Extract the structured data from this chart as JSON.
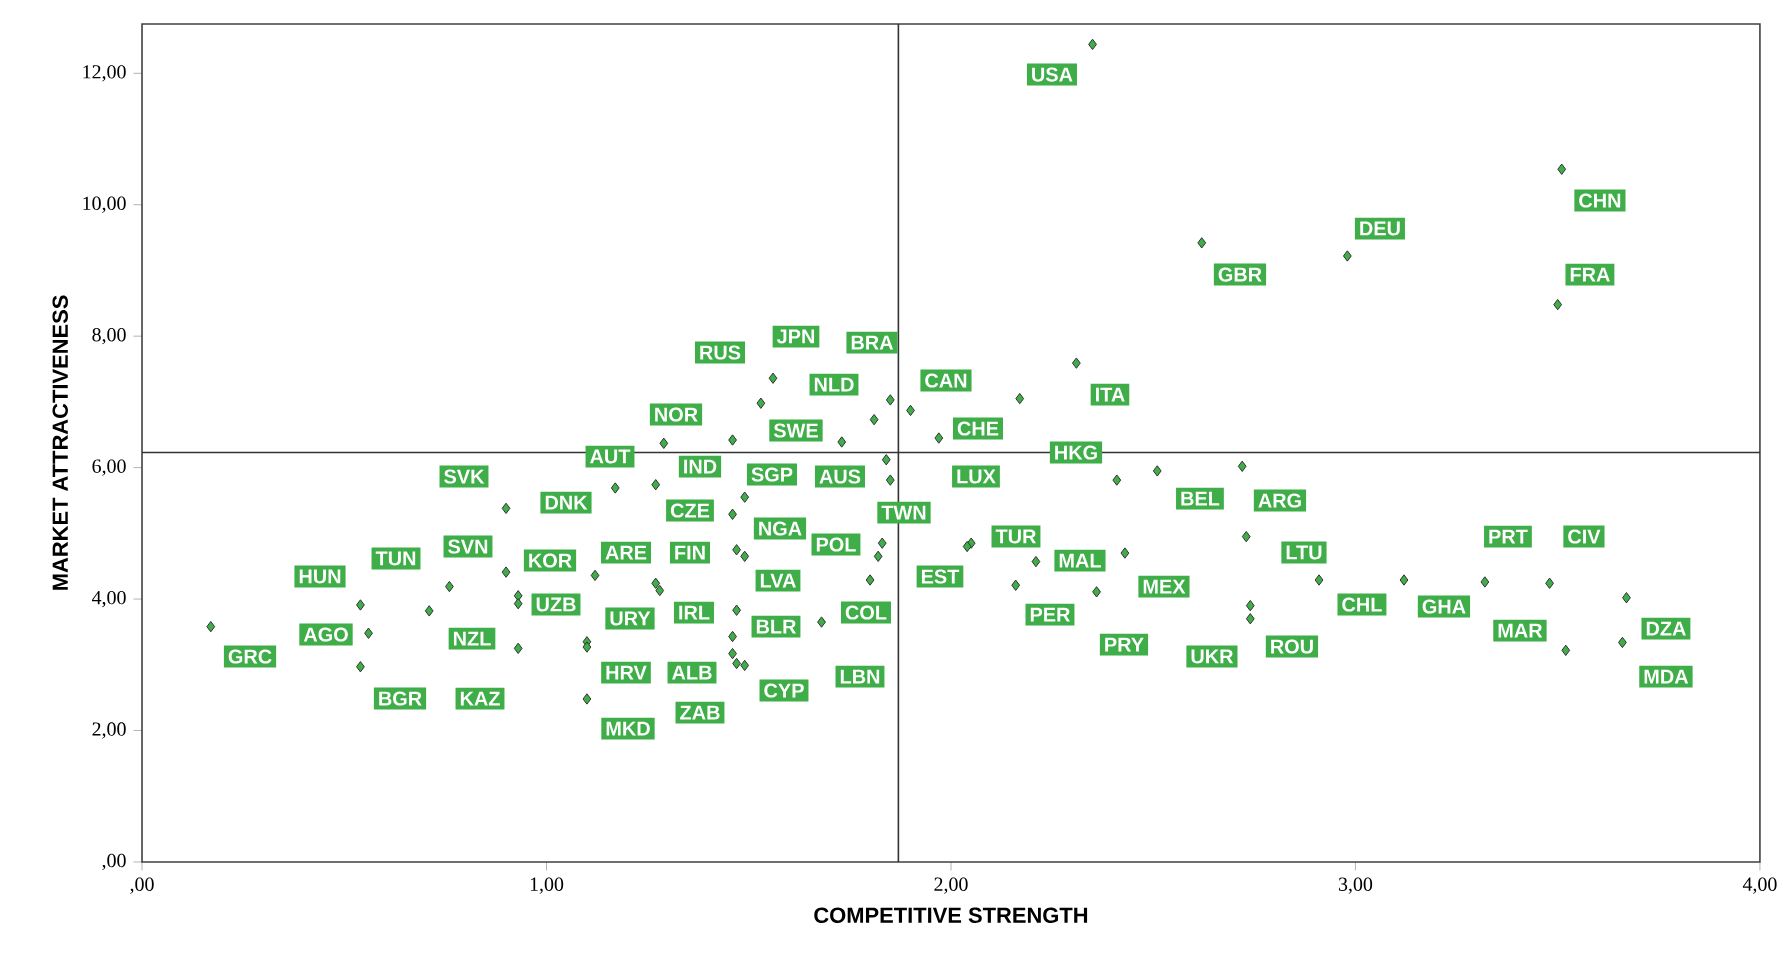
{
  "chart_data": {
    "type": "scatter",
    "xlabel": "COMPETITIVE STRENGTH",
    "ylabel": "MARKET ATTRACTIVENESS",
    "xlim": [
      0,
      4
    ],
    "ylim": [
      0,
      12.75
    ],
    "xticks": [
      {
        "value": 0,
        "label": ",00"
      },
      {
        "value": 1,
        "label": "1,00"
      },
      {
        "value": 2,
        "label": "2,00"
      },
      {
        "value": 3,
        "label": "3,00"
      },
      {
        "value": 4,
        "label": "4,00"
      }
    ],
    "yticks": [
      {
        "value": 0,
        "label": ",00"
      },
      {
        "value": 2,
        "label": "2,00"
      },
      {
        "value": 4,
        "label": "4,00"
      },
      {
        "value": 6,
        "label": "6,00"
      },
      {
        "value": 8,
        "label": "8,00"
      },
      {
        "value": 10,
        "label": "10,00"
      },
      {
        "value": 12,
        "label": "12,00"
      }
    ],
    "marker": "diamond",
    "grid": false,
    "series": [
      {
        "color": "#3fae49",
        "x": [
          0.17,
          0.54,
          0.56,
          0.54,
          0.76,
          0.71,
          0.9,
          0.9,
          0.93,
          0.93,
          0.93,
          1.17,
          1.29,
          1.46,
          1.27,
          1.12,
          1.1,
          1.1,
          1.27,
          1.28,
          1.46,
          1.49,
          1.47,
          1.49,
          1.47,
          1.46,
          1.46,
          1.47,
          1.49,
          1.56,
          1.53,
          1.81,
          1.85,
          1.73,
          1.84,
          1.85,
          1.83,
          1.82,
          1.8,
          1.68,
          1.9,
          2.17,
          1.97,
          2.31,
          2.41,
          2.51,
          2.72,
          2.73,
          2.91,
          2.05,
          2.04,
          2.21,
          2.43,
          2.16,
          2.36,
          2.74,
          2.74,
          3.12,
          3.32,
          3.48,
          3.52,
          3.67,
          3.66,
          2.35,
          2.62,
          2.98,
          3.51,
          3.5,
          1.1
        ],
        "values": [
          3.58,
          3.91,
          3.48,
          2.97,
          4.19,
          3.82,
          5.38,
          4.41,
          4.05,
          3.93,
          3.25,
          5.69,
          6.37,
          6.42,
          5.74,
          4.36,
          3.35,
          2.48,
          4.24,
          4.13,
          5.29,
          5.55,
          4.75,
          4.65,
          3.83,
          3.43,
          3.17,
          3.02,
          2.99,
          7.36,
          6.98,
          6.73,
          7.03,
          6.39,
          6.12,
          5.81,
          4.85,
          4.65,
          4.29,
          3.65,
          6.87,
          7.05,
          6.45,
          7.59,
          5.81,
          5.95,
          6.02,
          4.95,
          4.29,
          4.85,
          4.8,
          4.57,
          4.7,
          4.21,
          4.11,
          3.9,
          3.7,
          4.29,
          4.26,
          4.24,
          3.22,
          4.02,
          3.34,
          12.44,
          9.42,
          9.22,
          10.54,
          8.48,
          3.27
        ]
      }
    ],
    "ref_lines": [
      {
        "axis": "x",
        "value": 1.87,
        "color": "#333333"
      },
      {
        "axis": "y",
        "value": 6.23,
        "color": "#333333"
      }
    ],
    "annotations": [
      {
        "text": "GRC",
        "x": 0.17,
        "y": 3.58
      },
      {
        "text": "HUN",
        "x": 0.54,
        "y": 3.91
      },
      {
        "text": "AGO",
        "x": 0.56,
        "y": 3.48
      },
      {
        "text": "BGR",
        "x": 0.54,
        "y": 2.97
      },
      {
        "text": "TUN",
        "x": 0.76,
        "y": 4.19
      },
      {
        "text": "NZL",
        "x": 0.71,
        "y": 3.82
      },
      {
        "text": "SVK",
        "x": 0.9,
        "y": 5.38
      },
      {
        "text": "SVN",
        "x": 0.9,
        "y": 4.41
      },
      {
        "text": "KOR",
        "x": 0.93,
        "y": 4.05
      },
      {
        "text": "UZB",
        "x": 0.93,
        "y": 3.93
      },
      {
        "text": "KAZ",
        "x": 0.93,
        "y": 3.25
      },
      {
        "text": "DNK",
        "x": 1.17,
        "y": 5.69
      },
      {
        "text": "AUT",
        "x": 1.29,
        "y": 6.37
      },
      {
        "text": "NOR",
        "x": 1.46,
        "y": 6.42
      },
      {
        "text": "IND",
        "x": 1.27,
        "y": 5.74
      },
      {
        "text": "ARE",
        "x": 1.12,
        "y": 4.36
      },
      {
        "text": "URY",
        "x": 1.1,
        "y": 3.35
      },
      {
        "text": "MKD",
        "x": 1.1,
        "y": 2.48
      },
      {
        "text": "FIN",
        "x": 1.27,
        "y": 4.24
      },
      {
        "text": "IRL",
        "x": 1.28,
        "y": 4.13
      },
      {
        "text": "CZE",
        "x": 1.46,
        "y": 5.29
      },
      {
        "text": "SGP",
        "x": 1.49,
        "y": 5.55
      },
      {
        "text": "NGA",
        "x": 1.47,
        "y": 4.75
      },
      {
        "text": "LVA",
        "x": 1.49,
        "y": 4.65
      },
      {
        "text": "BLR",
        "x": 1.47,
        "y": 3.83
      },
      {
        "text": "HRV",
        "x": 1.1,
        "y": 3.27
      },
      {
        "text": "ALB",
        "x": 1.46,
        "y": 3.17
      },
      {
        "text": "ZAB",
        "x": 1.47,
        "y": 3.02
      },
      {
        "text": "CYP",
        "x": 1.49,
        "y": 2.99
      },
      {
        "text": "JPN",
        "x": 1.56,
        "y": 7.36
      },
      {
        "text": "RUS",
        "x": 1.53,
        "y": 6.98
      },
      {
        "text": "NLD",
        "x": 1.81,
        "y": 6.73
      },
      {
        "text": "BRA",
        "x": 1.85,
        "y": 7.03
      },
      {
        "text": "SWE",
        "x": 1.73,
        "y": 6.39
      },
      {
        "text": "AUS",
        "x": 1.84,
        "y": 6.12
      },
      {
        "text": "TWN",
        "x": 1.85,
        "y": 5.81
      },
      {
        "text": "POL",
        "x": 1.82,
        "y": 4.65
      },
      {
        "text": "COL",
        "x": 1.8,
        "y": 4.29
      },
      {
        "text": "LBN",
        "x": 1.68,
        "y": 3.65
      },
      {
        "text": "CAN",
        "x": 1.9,
        "y": 6.87
      },
      {
        "text": "CHE",
        "x": 2.17,
        "y": 7.05
      },
      {
        "text": "LUX",
        "x": 1.97,
        "y": 6.45
      },
      {
        "text": "ITA",
        "x": 2.31,
        "y": 7.59
      },
      {
        "text": "HKG",
        "x": 2.41,
        "y": 5.81
      },
      {
        "text": "BEL",
        "x": 2.51,
        "y": 5.95
      },
      {
        "text": "ARG",
        "x": 2.72,
        "y": 6.02
      },
      {
        "text": "LTU",
        "x": 2.73,
        "y": 4.95
      },
      {
        "text": "CHL",
        "x": 2.91,
        "y": 4.29
      },
      {
        "text": "TUR",
        "x": 2.05,
        "y": 4.85
      },
      {
        "text": "EST",
        "x": 2.04,
        "y": 4.8
      },
      {
        "text": "MAL",
        "x": 2.21,
        "y": 4.57
      },
      {
        "text": "MEX",
        "x": 2.43,
        "y": 4.7
      },
      {
        "text": "PER",
        "x": 2.16,
        "y": 4.21
      },
      {
        "text": "PRY",
        "x": 2.36,
        "y": 4.11
      },
      {
        "text": "UKR",
        "x": 2.74,
        "y": 3.9
      },
      {
        "text": "ROU",
        "x": 2.74,
        "y": 3.7
      },
      {
        "text": "GHA",
        "x": 3.12,
        "y": 4.29
      },
      {
        "text": "PRT",
        "x": 3.32,
        "y": 4.26
      },
      {
        "text": "CIV",
        "x": 3.48,
        "y": 4.24
      },
      {
        "text": "MAR",
        "x": 3.52,
        "y": 3.22
      },
      {
        "text": "DZA",
        "x": 3.67,
        "y": 4.02
      },
      {
        "text": "MDA",
        "x": 3.66,
        "y": 3.34
      },
      {
        "text": "USA",
        "x": 2.35,
        "y": 12.44
      },
      {
        "text": "GBR",
        "x": 2.62,
        "y": 9.42
      },
      {
        "text": "DEU",
        "x": 2.98,
        "y": 9.22
      },
      {
        "text": "CHN",
        "x": 3.51,
        "y": 10.54
      },
      {
        "text": "FRA",
        "x": 3.5,
        "y": 8.48
      }
    ]
  }
}
